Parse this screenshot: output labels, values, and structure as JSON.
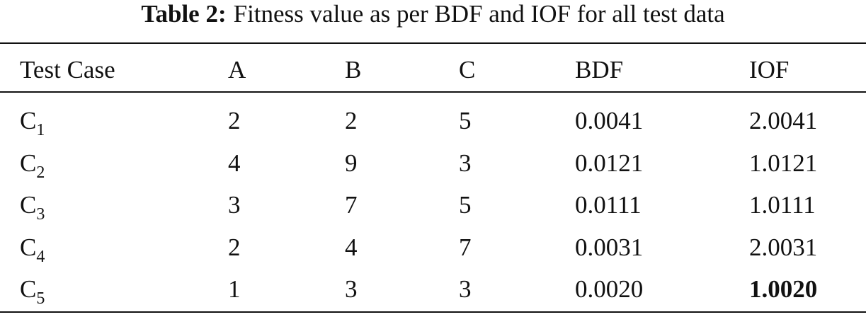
{
  "caption": {
    "label": "Table 2:",
    "text": "Fitness value as per BDF and IOF for all test data"
  },
  "table": {
    "header": [
      "Test Case",
      "A",
      "B",
      "C",
      "BDF",
      "IOF"
    ],
    "rows": [
      [
        {
          "base": "C",
          "sub": "1"
        },
        "2",
        "2",
        "5",
        "0.0041",
        "2.0041"
      ],
      [
        {
          "base": "C",
          "sub": "2"
        },
        "4",
        "9",
        "3",
        "0.0121",
        "1.0121"
      ],
      [
        {
          "base": "C",
          "sub": "3"
        },
        "3",
        "7",
        "5",
        "0.0111",
        "1.0111"
      ],
      [
        {
          "base": "C",
          "sub": "4"
        },
        "2",
        "4",
        "7",
        "0.0031",
        "2.0031"
      ],
      [
        {
          "base": "C",
          "sub": "5"
        },
        "1",
        "3",
        "3",
        "0.0020",
        "1.0020"
      ]
    ],
    "bold_cells": [
      [
        4,
        5
      ]
    ]
  }
}
